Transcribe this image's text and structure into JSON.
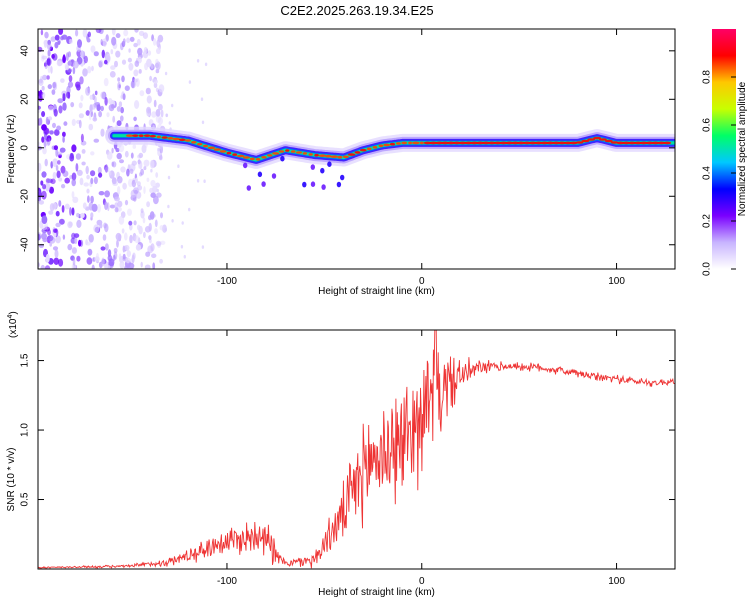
{
  "title": "C2E2.2025.263.19.34.E25",
  "chart_data": [
    {
      "type": "heatmap",
      "name": "spectrogram",
      "xlabel": "Height of straight line (km)",
      "ylabel": "Frequency (Hz)",
      "xlim": [
        -197,
        130
      ],
      "ylim": [
        -50,
        49
      ],
      "x_ticks": [
        -100,
        0,
        100
      ],
      "y_ticks": [
        -40,
        -20,
        0,
        20,
        40
      ],
      "dominant_track": {
        "x": [
          -158,
          -140,
          -120,
          -100,
          -85,
          -70,
          -55,
          -40,
          -30,
          -20,
          -10,
          0,
          20,
          40,
          60,
          80,
          90,
          100,
          115,
          130
        ],
        "y": [
          5,
          5,
          3,
          -2,
          -5,
          -1,
          -3,
          -4,
          -1,
          1,
          2,
          2,
          2,
          2,
          2,
          2,
          4,
          2,
          2,
          2
        ]
      },
      "noise_region_x": [
        -197,
        -140
      ],
      "colorbar": {
        "label": "Normalized spectral amplitude",
        "range": [
          0.0,
          1.0
        ],
        "ticks": [
          0.0,
          0.2,
          0.4,
          0.6,
          0.8
        ],
        "tick_labels": [
          "0.0",
          "0.2",
          "0.4",
          "0.6",
          "0.8"
        ],
        "colors": [
          "#ffffff",
          "#c8b4ff",
          "#7a00ff",
          "#0000ff",
          "#00c8ff",
          "#00ff66",
          "#c8ff00",
          "#ffc800",
          "#ff0000",
          "#ff0066"
        ]
      }
    },
    {
      "type": "line",
      "name": "snr",
      "xlabel": "Height of straight line (km)",
      "ylabel": "SNR (10 * v/v)",
      "y_multiplier": "(x10",
      "y_multiplier_exp": "4",
      "y_multiplier_close": ")",
      "xlim": [
        -197,
        130
      ],
      "ylim": [
        0,
        1.72
      ],
      "x_ticks": [
        -100,
        0,
        100
      ],
      "y_ticks": [
        0.5,
        1.0,
        1.5
      ],
      "y_tick_labels": [
        "0.5",
        "1.0",
        "1.5"
      ],
      "color": "#ee3333",
      "envelope": {
        "x": [
          -197,
          -150,
          -130,
          -115,
          -102,
          -90,
          -80,
          -75,
          -68,
          -55,
          -47,
          -40,
          -33,
          -25,
          -18,
          -10,
          -5,
          0,
          8,
          18,
          30,
          45,
          60,
          75,
          90,
          100,
          110,
          120,
          130
        ],
        "y": [
          0.01,
          0.02,
          0.05,
          0.12,
          0.2,
          0.22,
          0.28,
          0.08,
          0.04,
          0.07,
          0.25,
          0.4,
          0.62,
          0.8,
          0.86,
          0.9,
          1.02,
          1.12,
          1.25,
          1.38,
          1.45,
          1.46,
          1.45,
          1.42,
          1.38,
          1.37,
          1.35,
          1.34,
          1.35
        ]
      },
      "spike": {
        "x": 7,
        "y": 1.72
      },
      "noise": {
        "x": [
          -197,
          -150,
          -130,
          -115,
          -102,
          -90,
          -80,
          -70,
          -55,
          -45,
          -35,
          -25,
          -15,
          -5,
          5,
          12,
          20,
          30,
          45,
          60,
          80,
          100,
          130
        ],
        "y": [
          0.005,
          0.01,
          0.03,
          0.06,
          0.1,
          0.12,
          0.16,
          0.02,
          0.06,
          0.14,
          0.28,
          0.38,
          0.4,
          0.42,
          0.38,
          0.25,
          0.12,
          0.05,
          0.03,
          0.03,
          0.03,
          0.03,
          0.025
        ]
      }
    }
  ]
}
